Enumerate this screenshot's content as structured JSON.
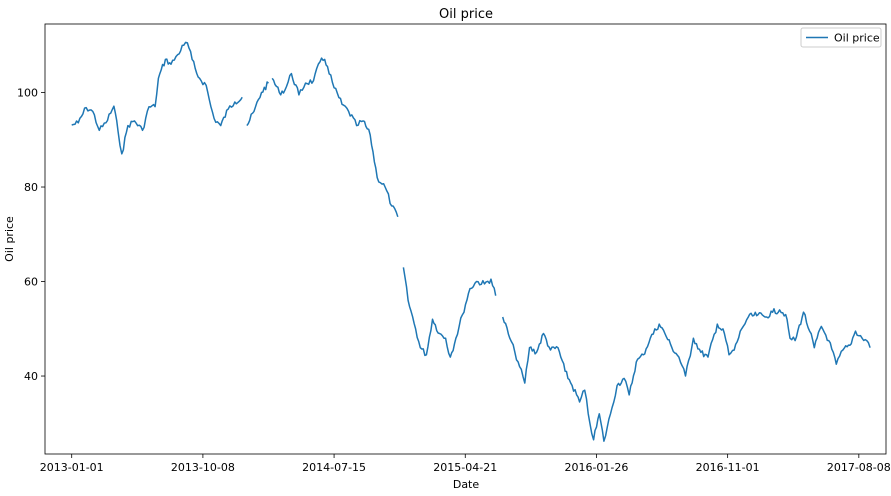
{
  "chart_data": {
    "type": "line",
    "title": "Oil price",
    "xlabel": "Date",
    "ylabel": "Oil price",
    "x_ticks": [
      "2013-01-01",
      "2013-10-08",
      "2014-07-15",
      "2015-04-21",
      "2016-01-26",
      "2016-11-01",
      "2017-08-08"
    ],
    "y_ticks": [
      40,
      60,
      80,
      100
    ],
    "xlim": [
      "2012-11-05",
      "2017-10-05"
    ],
    "ylim": [
      23.5,
      114.5
    ],
    "grid": false,
    "legend": "top-right",
    "series": [
      {
        "name": "Oil price",
        "color": "#1f77b4",
        "segments": [
          [
            [
              "2013-01-01",
              93.1
            ],
            [
              "2013-01-15",
              93.6
            ],
            [
              "2013-02-01",
              96.8
            ],
            [
              "2013-02-15",
              96.0
            ],
            [
              "2013-03-01",
              92.0
            ],
            [
              "2013-03-15",
              93.6
            ],
            [
              "2013-04-01",
              97.1
            ],
            [
              "2013-04-10",
              91.7
            ],
            [
              "2013-04-18",
              87.0
            ],
            [
              "2013-05-01",
              93.0
            ],
            [
              "2013-05-15",
              94.0
            ],
            [
              "2013-06-01",
              92.0
            ],
            [
              "2013-06-15",
              97.0
            ],
            [
              "2013-06-28",
              97.0
            ],
            [
              "2013-07-05",
              103.0
            ],
            [
              "2013-07-20",
              107.0
            ],
            [
              "2013-08-01",
              106.0
            ],
            [
              "2013-08-15",
              108.0
            ],
            [
              "2013-08-28",
              110.0
            ],
            [
              "2013-09-05",
              110.5
            ],
            [
              "2013-09-15",
              107.0
            ],
            [
              "2013-09-25",
              104.0
            ],
            [
              "2013-10-01",
              103.0
            ],
            [
              "2013-10-15",
              101.5
            ],
            [
              "2013-10-25",
              97.0
            ],
            [
              "2013-11-01",
              94.5
            ],
            [
              "2013-11-15",
              93.0
            ],
            [
              "2013-12-01",
              96.5
            ],
            [
              "2013-12-15",
              98.0
            ],
            [
              "2013-12-31",
              99.0
            ]
          ],
          [
            [
              "2014-01-10",
              93.0
            ],
            [
              "2014-01-25",
              96.0
            ],
            [
              "2014-02-10",
              100.0
            ],
            [
              "2014-02-25",
              102.0
            ]
          ],
          [
            [
              "2014-03-05",
              103.0
            ],
            [
              "2014-03-20",
              100.0
            ],
            [
              "2014-04-01",
              100.5
            ],
            [
              "2014-04-15",
              104.0
            ],
            [
              "2014-05-01",
              99.5
            ],
            [
              "2014-05-15",
              102.0
            ],
            [
              "2014-06-01",
              102.5
            ],
            [
              "2014-06-15",
              106.5
            ],
            [
              "2014-06-25",
              107.0
            ],
            [
              "2014-07-01",
              105.5
            ],
            [
              "2014-07-15",
              101.0
            ],
            [
              "2014-08-01",
              97.5
            ],
            [
              "2014-08-15",
              96.0
            ],
            [
              "2014-09-01",
              93.0
            ],
            [
              "2014-09-15",
              94.0
            ],
            [
              "2014-09-30",
              91.0
            ],
            [
              "2014-10-15",
              82.0
            ],
            [
              "2014-11-01",
              80.0
            ],
            [
              "2014-11-15",
              76.0
            ],
            [
              "2014-11-28",
              73.7
            ]
          ],
          [
            [
              "2014-12-10",
              63.0
            ],
            [
              "2014-12-20",
              56.0
            ],
            [
              "2015-01-05",
              50.0
            ],
            [
              "2015-01-15",
              46.0
            ],
            [
              "2015-01-28",
              44.5
            ],
            [
              "2015-02-10",
              52.0
            ],
            [
              "2015-02-25",
              49.0
            ],
            [
              "2015-03-10",
              48.0
            ],
            [
              "2015-03-20",
              44.0
            ],
            [
              "2015-04-01",
              48.0
            ],
            [
              "2015-04-15",
              53.0
            ],
            [
              "2015-05-01",
              58.5
            ],
            [
              "2015-05-15",
              60.0
            ],
            [
              "2015-06-01",
              59.5
            ],
            [
              "2015-06-15",
              60.5
            ],
            [
              "2015-06-25",
              57.0
            ]
          ],
          [
            [
              "2015-07-10",
              52.5
            ],
            [
              "2015-07-25",
              48.0
            ],
            [
              "2015-08-05",
              45.0
            ],
            [
              "2015-08-15",
              42.0
            ],
            [
              "2015-08-26",
              38.5
            ],
            [
              "2015-09-05",
              46.0
            ],
            [
              "2015-09-20",
              45.0
            ],
            [
              "2015-10-05",
              49.0
            ],
            [
              "2015-10-20",
              45.5
            ],
            [
              "2015-11-05",
              46.0
            ],
            [
              "2015-11-20",
              41.0
            ],
            [
              "2015-12-05",
              38.0
            ],
            [
              "2015-12-21",
              34.5
            ],
            [
              "2016-01-01",
              37.0
            ],
            [
              "2016-01-12",
              30.0
            ],
            [
              "2016-01-20",
              26.5
            ],
            [
              "2016-02-01",
              32.0
            ],
            [
              "2016-02-11",
              26.2
            ],
            [
              "2016-02-25",
              32.0
            ],
            [
              "2016-03-10",
              38.0
            ],
            [
              "2016-03-25",
              39.5
            ],
            [
              "2016-04-05",
              36.0
            ],
            [
              "2016-04-20",
              43.0
            ],
            [
              "2016-05-05",
              44.5
            ],
            [
              "2016-05-20",
              48.0
            ],
            [
              "2016-06-08",
              51.0
            ],
            [
              "2016-06-20",
              49.0
            ],
            [
              "2016-07-05",
              46.0
            ],
            [
              "2016-07-20",
              44.0
            ],
            [
              "2016-08-03",
              40.0
            ],
            [
              "2016-08-20",
              48.0
            ],
            [
              "2016-09-05",
              45.0
            ],
            [
              "2016-09-20",
              44.0
            ],
            [
              "2016-10-10",
              51.0
            ],
            [
              "2016-10-25",
              49.0
            ],
            [
              "2016-11-04",
              44.5
            ],
            [
              "2016-11-15",
              45.5
            ],
            [
              "2016-12-01",
              50.0
            ],
            [
              "2016-12-15",
              52.5
            ],
            [
              "2017-01-05",
              53.0
            ],
            [
              "2017-01-20",
              52.5
            ],
            [
              "2017-02-05",
              53.5
            ],
            [
              "2017-02-20",
              54.0
            ],
            [
              "2017-03-05",
              53.0
            ],
            [
              "2017-03-14",
              48.0
            ],
            [
              "2017-03-25",
              47.5
            ],
            [
              "2017-04-12",
              53.5
            ],
            [
              "2017-04-25",
              49.5
            ],
            [
              "2017-05-05",
              46.0
            ],
            [
              "2017-05-20",
              50.5
            ],
            [
              "2017-06-05",
              47.5
            ],
            [
              "2017-06-21",
              42.5
            ],
            [
              "2017-07-05",
              45.5
            ],
            [
              "2017-07-20",
              46.5
            ],
            [
              "2017-08-01",
              49.5
            ],
            [
              "2017-08-15",
              48.0
            ],
            [
              "2017-08-25",
              47.5
            ],
            [
              "2017-09-01",
              46.0
            ]
          ]
        ]
      }
    ]
  }
}
